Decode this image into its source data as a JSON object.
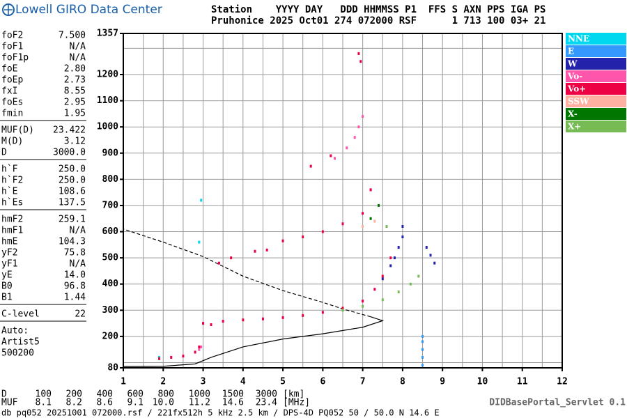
{
  "header": {
    "title": "Lowell GIRO Data Center",
    "station_line": "Station    YYYY DAY   DDD HHMMSS P1  FFS S AXN PPS IGA PS",
    "data_line": "Pruhonice 2025 Oct01 274 072000 RSF      1 713 100 03+ 21"
  },
  "params": [
    [
      [
        "foF2",
        "7.500"
      ],
      [
        "foF1",
        "N/A"
      ],
      [
        "foF1p",
        "N/A"
      ],
      [
        "foE",
        "2.80"
      ],
      [
        "foEp",
        "2.73"
      ],
      [
        "fxI",
        "8.55"
      ],
      [
        "foEs",
        "2.95"
      ],
      [
        "fmin",
        "1.95"
      ]
    ],
    [
      [
        "MUF(D)",
        "23.422"
      ],
      [
        "M(D)",
        "3.12"
      ],
      [
        "D",
        "3000.0"
      ]
    ],
    [
      [
        "h`F",
        "250.0"
      ],
      [
        "h`F2",
        "250.0"
      ],
      [
        "h`E",
        "108.6"
      ],
      [
        "h`Es",
        "137.5"
      ]
    ],
    [
      [
        "hmF2",
        "259.1"
      ],
      [
        "hmF1",
        "N/A"
      ],
      [
        "hmE",
        "104.3"
      ],
      [
        "yF2",
        "75.8"
      ],
      [
        "yF1",
        "N/A"
      ],
      [
        "yE",
        "14.0"
      ],
      [
        "B0",
        "96.8"
      ],
      [
        "B1",
        "1.44"
      ]
    ],
    [
      [
        "C-level",
        "22"
      ]
    ]
  ],
  "autoscaling": [
    "Auto:",
    "Artist5",
    "500200"
  ],
  "footer": {
    "distance_label": "D",
    "distances": [
      "100",
      "200",
      "400",
      "600",
      "800",
      "1000",
      "1500",
      "3000"
    ],
    "distance_unit": "[km]",
    "muf_label": "MUF",
    "mufs": [
      "8.1",
      "8.2",
      "8.6",
      "9.1",
      "10.0",
      "11.2",
      "14.6",
      "23.4"
    ],
    "muf_unit": "[MHz]",
    "info": "db pq052 20251001 072000.rsf / 221fx512h 5 kHz 2.5 km / DPS-4D PQ052 50 / 50.0 N 14.6 E",
    "servlet": "DIDBasePortal_Servlet 0.1"
  },
  "chart_data": {
    "type": "scatter",
    "xlim": [
      1,
      12
    ],
    "xticks": [
      1,
      2,
      3,
      4,
      5,
      6,
      7,
      8,
      9,
      10,
      11,
      12
    ],
    "xgrid": [
      1.5,
      2,
      2.5,
      3,
      3.5,
      4,
      4.5,
      5,
      5.5,
      6,
      6.5,
      7,
      7.5,
      8,
      8.5,
      9,
      9.5,
      10,
      10.5,
      11,
      11.5
    ],
    "ylim": [
      80,
      1357
    ],
    "yticks": [
      80,
      200,
      300,
      400,
      500,
      600,
      700,
      800,
      900,
      1000,
      1100,
      1200,
      1357
    ],
    "ygrid": [
      100,
      200,
      300,
      400,
      500,
      600,
      700,
      800,
      900,
      1000,
      1100,
      1200,
      1300
    ],
    "series": [
      {
        "name": "NNE",
        "color": "#00d8f0",
        "x": [
          1.9,
          2.9,
          2.95
        ],
        "values": [
          120,
          560,
          720
        ]
      },
      {
        "name": "E",
        "color": "#3399ff",
        "x": [
          8.5,
          8.5,
          8.5,
          8.5,
          8.5
        ],
        "values": [
          90,
          120,
          150,
          180,
          200
        ]
      },
      {
        "name": "W",
        "color": "#2222aa",
        "x": [
          7.5,
          7.7,
          7.8,
          7.9,
          8.0,
          8.0,
          8.6,
          8.7,
          8.8
        ],
        "values": [
          420,
          470,
          500,
          540,
          580,
          620,
          540,
          510,
          480
        ]
      },
      {
        "name": "Vo-",
        "color": "#ff55aa",
        "x": [
          6.3,
          6.6,
          6.8,
          6.9,
          7.0,
          7.2,
          2.9,
          2.95
        ],
        "values": [
          880,
          920,
          960,
          1000,
          1040,
          760,
          150,
          160
        ]
      },
      {
        "name": "Vo+",
        "color": "#ee0044",
        "x": [
          1.9,
          2.2,
          2.5,
          2.8,
          2.9,
          3.0,
          3.2,
          3.5,
          4.0,
          4.5,
          5.0,
          5.5,
          6.0,
          6.5,
          7.0,
          7.3,
          7.5,
          7.7,
          3.4,
          3.7,
          4.3,
          4.6,
          5.0,
          5.5,
          6.0,
          6.5,
          7.0,
          7.2,
          5.7,
          6.2,
          6.9,
          6.95
        ],
        "values": [
          115,
          120,
          125,
          140,
          160,
          250,
          245,
          258,
          263,
          267,
          272,
          280,
          292,
          308,
          335,
          380,
          430,
          500,
          480,
          500,
          525,
          530,
          565,
          580,
          600,
          630,
          670,
          760,
          850,
          890,
          1280,
          1250
        ]
      },
      {
        "name": "SSW",
        "color": "#ffb0a0",
        "x": [
          7.0,
          7.3
        ],
        "values": [
          620,
          640
        ]
      },
      {
        "name": "X-",
        "color": "#007700",
        "x": [
          7.2,
          7.4
        ],
        "values": [
          650,
          700
        ]
      },
      {
        "name": "X+",
        "color": "#77bb55",
        "x": [
          6.5,
          7.0,
          7.5,
          7.9,
          8.2,
          8.4,
          7.6
        ],
        "values": [
          300,
          315,
          340,
          370,
          400,
          430,
          620
        ]
      }
    ],
    "profile": {
      "solid": {
        "x": [
          1.0,
          2.0,
          2.8,
          3.2,
          4.0,
          5.0,
          6.0,
          7.0,
          7.5,
          7.2
        ],
        "values": [
          85,
          86,
          95,
          120,
          160,
          190,
          210,
          235,
          260,
          275
        ]
      },
      "dashed": {
        "x": [
          7.2,
          6.5,
          6.0,
          5.0,
          4.0,
          3.0,
          2.0,
          1.0
        ],
        "values": [
          275,
          305,
          330,
          375,
          430,
          505,
          560,
          610
        ]
      }
    }
  }
}
